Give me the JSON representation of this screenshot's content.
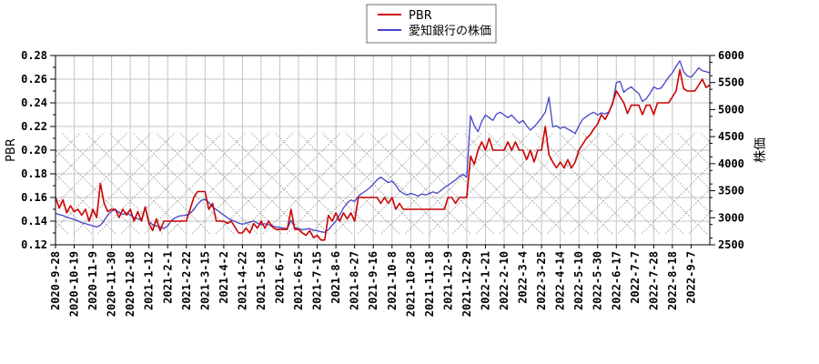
{
  "chart_data": {
    "type": "line",
    "title": "",
    "legend_position": "top-center",
    "grid": true,
    "legend": [
      {
        "label": "PBR",
        "color": "#cc0000"
      },
      {
        "label": "愛知銀行の株価",
        "color": "#4444cc"
      }
    ],
    "y_left": {
      "label": "PBR",
      "min": 0.12,
      "max": 0.28,
      "tick_step": 0.02,
      "ticks": [
        "0.12",
        "0.14",
        "0.16",
        "0.18",
        "0.20",
        "0.22",
        "0.24",
        "0.26",
        "0.28"
      ]
    },
    "y_right": {
      "label": "株価",
      "min": 2500,
      "max": 6000,
      "tick_step": 500,
      "ticks": [
        "2500",
        "3000",
        "3500",
        "4000",
        "4500",
        "5000",
        "5500",
        "6000"
      ]
    },
    "hatch_band": {
      "style": "crosshatch",
      "pbr_low": 0.129,
      "pbr_high": 0.215
    },
    "x_tick_labels": [
      "2020-9-28",
      "2020-10-19",
      "2020-11-9",
      "2020-11-30",
      "2020-12-18",
      "2021-1-12",
      "2021-2-1",
      "2021-2-22",
      "2021-3-15",
      "2021-4-2",
      "2021-4-22",
      "2021-5-18",
      "2021-6-7",
      "2021-6-25",
      "2021-7-15",
      "2021-8-6",
      "2021-8-27",
      "2021-9-16",
      "2021-10-8",
      "2021-10-28",
      "2021-11-18",
      "2021-12-9",
      "2021-12-29",
      "2022-1-21",
      "2022-2-10",
      "2022-3-4",
      "2022-3-25",
      "2022-4-14",
      "2022-5-10",
      "2022-5-30",
      "2022-6-17",
      "2022-7-7",
      "2022-7-28",
      "2022-8-18",
      "2022-9-7"
    ],
    "x_units_per_label": 1,
    "x_start": 0,
    "x_step": 0.2,
    "x_end": 35,
    "series": [
      {
        "name": "PBR",
        "axis": "left",
        "color": "#cc0000",
        "width": 1.6,
        "values": [
          0.16,
          0.151,
          0.158,
          0.147,
          0.153,
          0.148,
          0.15,
          0.145,
          0.15,
          0.14,
          0.15,
          0.143,
          0.172,
          0.155,
          0.148,
          0.15,
          0.15,
          0.143,
          0.15,
          0.145,
          0.15,
          0.14,
          0.148,
          0.14,
          0.152,
          0.138,
          0.132,
          0.142,
          0.132,
          0.14,
          0.14,
          0.14,
          0.14,
          0.14,
          0.14,
          0.14,
          0.15,
          0.16,
          0.165,
          0.165,
          0.165,
          0.15,
          0.155,
          0.14,
          0.14,
          0.14,
          0.138,
          0.14,
          0.135,
          0.13,
          0.13,
          0.134,
          0.13,
          0.138,
          0.134,
          0.14,
          0.134,
          0.14,
          0.135,
          0.133,
          0.133,
          0.133,
          0.133,
          0.15,
          0.133,
          0.133,
          0.13,
          0.128,
          0.132,
          0.126,
          0.128,
          0.124,
          0.124,
          0.145,
          0.14,
          0.147,
          0.14,
          0.147,
          0.142,
          0.147,
          0.14,
          0.16,
          0.16,
          0.16,
          0.16,
          0.16,
          0.16,
          0.155,
          0.16,
          0.155,
          0.16,
          0.15,
          0.155,
          0.15,
          0.15,
          0.15,
          0.15,
          0.15,
          0.15,
          0.15,
          0.15,
          0.15,
          0.15,
          0.15,
          0.15,
          0.16,
          0.16,
          0.155,
          0.16,
          0.16,
          0.16,
          0.195,
          0.188,
          0.2,
          0.207,
          0.2,
          0.21,
          0.2,
          0.2,
          0.2,
          0.2,
          0.207,
          0.2,
          0.207,
          0.2,
          0.2,
          0.192,
          0.2,
          0.19,
          0.2,
          0.2,
          0.22,
          0.196,
          0.19,
          0.185,
          0.19,
          0.185,
          0.192,
          0.185,
          0.19,
          0.2,
          0.205,
          0.21,
          0.213,
          0.218,
          0.222,
          0.23,
          0.226,
          0.232,
          0.24,
          0.25,
          0.245,
          0.24,
          0.231,
          0.238,
          0.238,
          0.238,
          0.23,
          0.238,
          0.238,
          0.23,
          0.24,
          0.24,
          0.24,
          0.24,
          0.245,
          0.25,
          0.268,
          0.252,
          0.25,
          0.25,
          0.25,
          0.255,
          0.26,
          0.253,
          0.255
        ]
      },
      {
        "name": "愛知銀行の株価",
        "axis": "right",
        "color": "#4444cc",
        "width": 1.3,
        "values": [
          3080,
          3060,
          3040,
          3010,
          2990,
          2970,
          2940,
          2910,
          2890,
          2870,
          2850,
          2830,
          2860,
          2950,
          3050,
          3120,
          3150,
          3100,
          3060,
          3090,
          3050,
          3000,
          2980,
          2960,
          3200,
          2920,
          2870,
          2850,
          2830,
          2800,
          2850,
          2950,
          3000,
          3030,
          3040,
          3050,
          3080,
          3150,
          3250,
          3320,
          3340,
          3280,
          3200,
          3150,
          3100,
          3050,
          3000,
          2960,
          2930,
          2900,
          2880,
          2900,
          2920,
          2940,
          2900,
          2870,
          2890,
          2870,
          2850,
          2830,
          2820,
          2810,
          2800,
          2950,
          2820,
          2800,
          2780,
          2790,
          2800,
          2770,
          2760,
          2740,
          2730,
          2780,
          2860,
          2940,
          3050,
          3180,
          3270,
          3330,
          3300,
          3400,
          3450,
          3500,
          3550,
          3620,
          3700,
          3750,
          3700,
          3650,
          3680,
          3600,
          3500,
          3450,
          3420,
          3450,
          3430,
          3400,
          3440,
          3420,
          3450,
          3480,
          3450,
          3500,
          3560,
          3600,
          3650,
          3700,
          3760,
          3800,
          3750,
          4890,
          4700,
          4590,
          4780,
          4900,
          4850,
          4800,
          4920,
          4950,
          4900,
          4850,
          4900,
          4820,
          4750,
          4800,
          4700,
          4620,
          4680,
          4760,
          4850,
          4950,
          5230,
          4680,
          4700,
          4650,
          4680,
          4640,
          4600,
          4560,
          4700,
          4820,
          4870,
          4920,
          4950,
          4900,
          4940,
          4920,
          4960,
          5100,
          5500,
          5520,
          5320,
          5380,
          5420,
          5350,
          5300,
          5150,
          5200,
          5300,
          5420,
          5380,
          5400,
          5500,
          5600,
          5680,
          5800,
          5900,
          5700,
          5620,
          5600,
          5680,
          5770,
          5720,
          5700,
          5680
        ]
      }
    ],
    "plot_colors": {
      "grid": "#c6c6c6",
      "hatch": "#a8a8a8",
      "frame": "#000000",
      "background": "#ffffff",
      "legend_border": "#707070"
    }
  }
}
